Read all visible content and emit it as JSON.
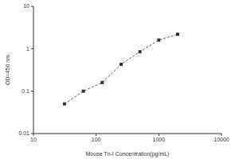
{
  "chart_data": {
    "type": "line",
    "x_label": "Mouse Tn-I Concentration(pg/mL)",
    "y_label": "OD=450 nm",
    "x": [
      31.25,
      62.5,
      125,
      250,
      500,
      1000,
      2000
    ],
    "values": [
      0.05,
      0.1,
      0.16,
      0.43,
      0.85,
      1.6,
      2.2
    ],
    "color": "#333333",
    "marker": "square",
    "line_style": "dashed",
    "log": true,
    "xlim": [
      10,
      10000
    ],
    "xticks": [
      10,
      100,
      1000,
      10000
    ],
    "ylim": [
      0.01,
      10
    ],
    "yticks": [
      0.01,
      0.1,
      1,
      10
    ],
    "grid": false
  }
}
